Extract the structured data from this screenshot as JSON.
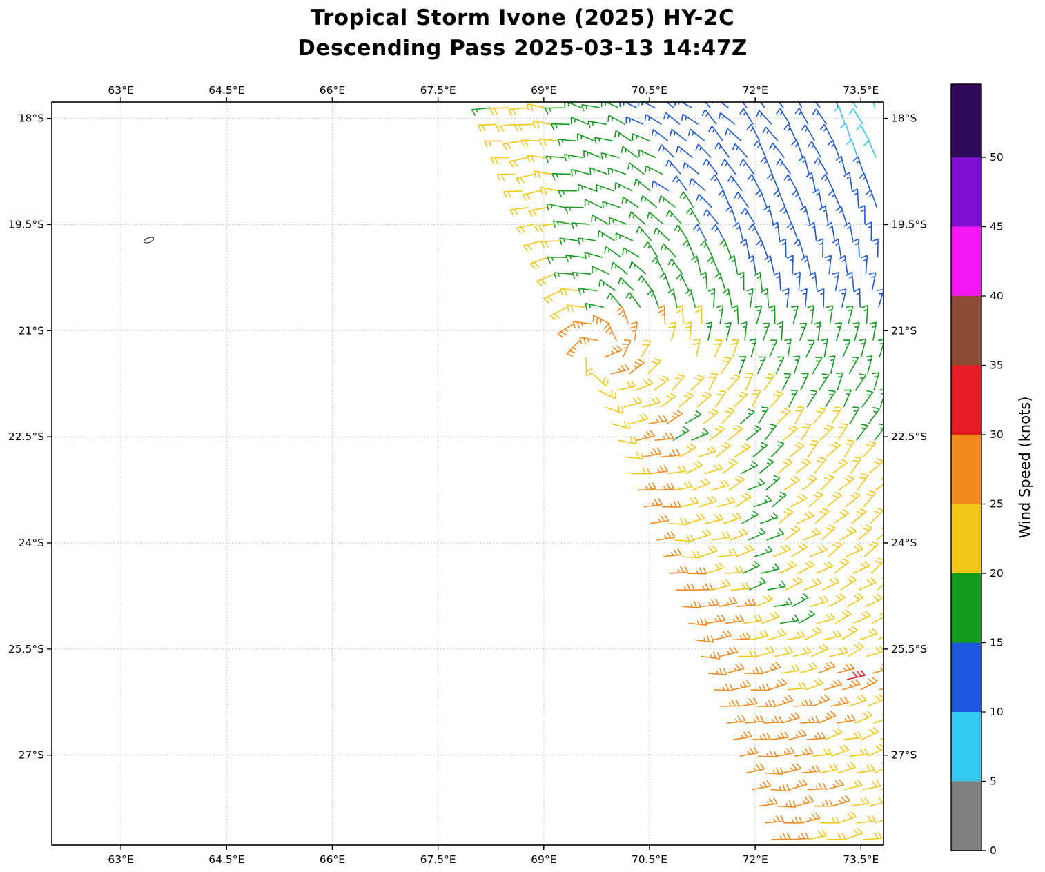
{
  "chart_data": {
    "type": "scatter",
    "subtype": "wind-barb-map",
    "title": "Tropical Storm Ivone (2025) HY-2C",
    "subtitle": "Descending Pass 2025-03-13 14:47Z",
    "grid": true,
    "x_axis": {
      "range": [
        62.02,
        73.82
      ],
      "tick_values": [
        63,
        64.5,
        66,
        67.5,
        69,
        70.5,
        72,
        73.5
      ],
      "tick_labels": [
        "63°E",
        "64.5°E",
        "66°E",
        "67.5°E",
        "69°E",
        "70.5°E",
        "72°E",
        "73.5°E"
      ]
    },
    "y_axis": {
      "range": [
        17.77,
        28.27
      ],
      "tick_values": [
        18,
        19.5,
        21,
        22.5,
        24,
        25.5,
        27
      ],
      "tick_labels": [
        "18°S",
        "19.5°S",
        "21°S",
        "22.5°S",
        "24°S",
        "25.5°S",
        "27°S"
      ]
    },
    "colorbar": {
      "label": "Wind Speed (knots)",
      "units": "knots",
      "tick_values": [
        0,
        5,
        10,
        15,
        20,
        25,
        30,
        35,
        40,
        45,
        50
      ],
      "bands": [
        {
          "range": [
            0,
            5
          ],
          "color": "#7f7f7f"
        },
        {
          "range": [
            5,
            10
          ],
          "color": "#33C9F0"
        },
        {
          "range": [
            10,
            15
          ],
          "color": "#1C58DC"
        },
        {
          "range": [
            15,
            20
          ],
          "color": "#149C1E"
        },
        {
          "range": [
            20,
            25
          ],
          "color": "#F3C717"
        },
        {
          "range": [
            25,
            30
          ],
          "color": "#F18A1D"
        },
        {
          "range": [
            30,
            35
          ],
          "color": "#E61B23"
        },
        {
          "range": [
            35,
            40
          ],
          "color": "#8A4B32"
        },
        {
          "range": [
            40,
            45
          ],
          "color": "#F518F5"
        },
        {
          "range": [
            45,
            50
          ],
          "color": "#7E0FD0"
        }
      ],
      "extend_color": "#2F0B5A"
    },
    "island": {
      "lon": 63.4,
      "lat": 19.72,
      "name": "small-island-outline"
    },
    "wind_field": {
      "description": "Satellite scatterometer wind barbs (knots) over a descending swath; speeds sampled on coarse grid, colored by colorbar bands",
      "storm_center": {
        "lon": 69.8,
        "lat": 21.3
      },
      "rotation": "clockwise",
      "swath": {
        "lat_min": 17.85,
        "lat_max": 28.22,
        "row_step": 0.235,
        "col_step": 0.26,
        "lon_max": 73.78,
        "edge_lat": 17.77,
        "edge_lon": 68.15,
        "edge_slope": 0.386
      },
      "gap_polygon": [
        [
          70.45,
          20.85
        ],
        [
          71.3,
          21.65
        ],
        [
          70.55,
          21.65
        ]
      ],
      "extra_points": [
        {
          "lon": 73.3,
          "lat": 25.93,
          "speed": 32
        }
      ],
      "grid": {
        "lon_start": 68.0,
        "lon_step": 0.5,
        "lat_start": 18.0,
        "lat_step": 0.5,
        "speeds": [
          [
            17,
            22,
            22,
            17,
            17,
            13,
            13,
            13,
            13,
            13,
            13,
            8
          ],
          [
            17,
            22,
            22,
            17,
            17,
            17,
            13,
            13,
            13,
            13,
            13,
            8
          ],
          [
            22,
            22,
            22,
            17,
            17,
            17,
            13,
            13,
            13,
            13,
            13,
            13
          ],
          [
            22,
            22,
            22,
            17,
            17,
            17,
            17,
            13,
            13,
            13,
            13,
            13
          ],
          [
            22,
            22,
            22,
            17,
            17,
            17,
            17,
            17,
            13,
            13,
            13,
            13
          ],
          [
            22,
            22,
            22,
            22,
            17,
            17,
            17,
            17,
            17,
            13,
            13,
            13
          ],
          [
            22,
            22,
            22,
            27,
            27,
            27,
            22,
            17,
            17,
            17,
            17,
            17
          ],
          [
            22,
            22,
            22,
            22,
            27,
            22,
            22,
            22,
            17,
            17,
            17,
            17
          ],
          [
            22,
            22,
            22,
            22,
            22,
            22,
            22,
            22,
            22,
            17,
            17,
            17
          ],
          [
            22,
            22,
            22,
            22,
            22,
            27,
            17,
            22,
            17,
            22,
            22,
            17
          ],
          [
            22,
            22,
            22,
            22,
            22,
            27,
            22,
            22,
            17,
            22,
            22,
            22
          ],
          [
            22,
            22,
            22,
            22,
            22,
            27,
            22,
            22,
            17,
            22,
            22,
            22
          ],
          [
            22,
            22,
            22,
            22,
            22,
            27,
            22,
            22,
            17,
            22,
            22,
            22
          ],
          [
            22,
            22,
            22,
            22,
            22,
            22,
            27,
            22,
            17,
            22,
            22,
            22
          ],
          [
            22,
            22,
            22,
            22,
            22,
            22,
            27,
            27,
            22,
            17,
            22,
            22
          ],
          [
            22,
            22,
            22,
            22,
            22,
            22,
            27,
            27,
            22,
            22,
            22,
            22
          ],
          [
            27,
            27,
            27,
            27,
            27,
            27,
            27,
            27,
            27,
            22,
            27,
            27
          ],
          [
            27,
            27,
            27,
            27,
            27,
            27,
            27,
            27,
            27,
            27,
            27,
            22
          ],
          [
            27,
            27,
            27,
            27,
            27,
            27,
            27,
            27,
            27,
            27,
            22,
            22
          ],
          [
            27,
            27,
            27,
            27,
            27,
            27,
            27,
            27,
            27,
            27,
            27,
            22
          ],
          [
            27,
            27,
            27,
            27,
            27,
            27,
            27,
            27,
            27,
            27,
            22,
            22
          ]
        ]
      }
    }
  }
}
